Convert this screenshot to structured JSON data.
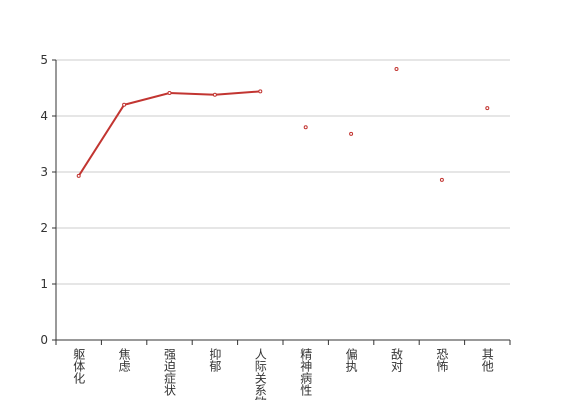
{
  "chart_data": {
    "type": "line",
    "categories": [
      "躯体化",
      "焦虑",
      "强迫症状",
      "抑郁",
      "人际关系敏感",
      "精神病性",
      "偏执",
      "敌对",
      "恐怖",
      "其他"
    ],
    "series": [
      {
        "color": "#c23531",
        "values": [
          2.93,
          4.2,
          4.41,
          4.38,
          4.44,
          3.8,
          3.68,
          4.84,
          2.86,
          4.14
        ]
      }
    ],
    "ylim": [
      0,
      5
    ],
    "yticks": [
      0,
      1,
      2,
      3,
      4,
      5
    ],
    "grid": true
  }
}
